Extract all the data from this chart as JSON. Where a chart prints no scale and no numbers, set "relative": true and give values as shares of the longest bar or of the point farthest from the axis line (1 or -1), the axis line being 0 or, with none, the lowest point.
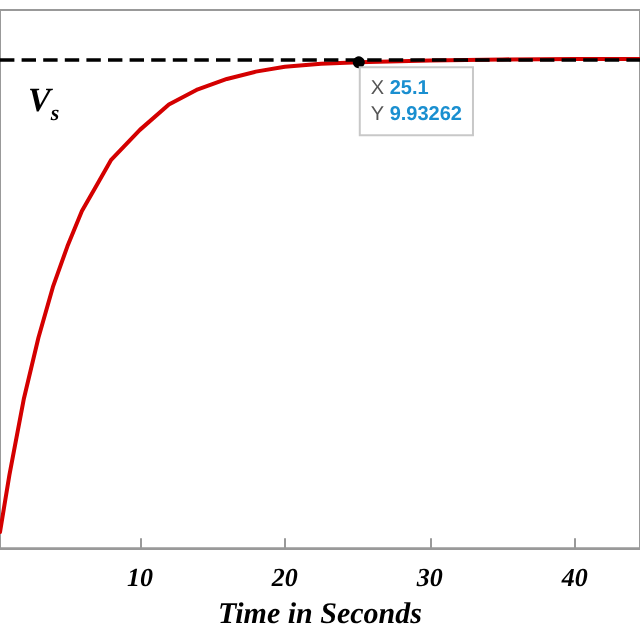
{
  "chart_data": {
    "type": "line",
    "xlabel": "Time in Seconds",
    "relative": true,
    "x": [
      0.35,
      1,
      2,
      3,
      4,
      5,
      6,
      7,
      8,
      10,
      12,
      14,
      16,
      18,
      20,
      22.5,
      25.1,
      30,
      35,
      40,
      44.5
    ],
    "series": [
      {
        "color": "#d40000",
        "values": [
          0.033,
          0.15,
          0.306,
          0.43,
          0.534,
          0.617,
          0.689,
          0.741,
          0.793,
          0.855,
          0.907,
          0.938,
          0.959,
          0.974,
          0.984,
          0.99,
          0.993,
          0.997,
          0.999,
          1,
          1
        ]
      }
    ],
    "xlim": [
      0.35,
      44.5
    ],
    "xticks": [
      10,
      20,
      30,
      40
    ],
    "tick_labels": "x",
    "grid": false,
    "marker": "none",
    "line_style": "solid",
    "ref_lines": [
      {
        "axis": "y",
        "value": 1,
        "label": "V$_{s}$",
        "color": "#000000",
        "line_style": "dashed"
      }
    ],
    "annotations": [
      {
        "text": "X 25.1\nY 9.93262",
        "x": 25.1,
        "y": 0.993
      }
    ]
  }
}
